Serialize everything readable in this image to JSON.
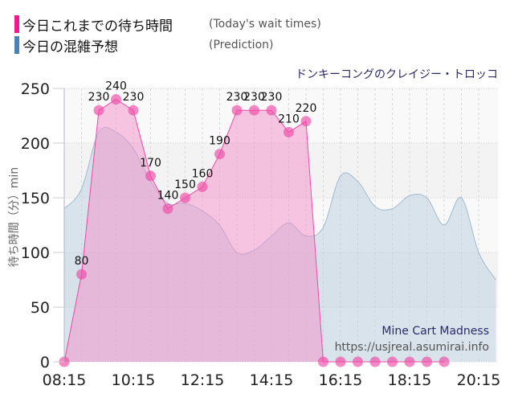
{
  "legend": {
    "items": [
      {
        "label_ja": "今日これまでの待ち時間",
        "label_en": "(Today's wait times)",
        "color": "#ee1a8f"
      },
      {
        "label_ja": "今日の混雑予想",
        "label_en": "(Prediction)",
        "color": "#4a82b4"
      }
    ]
  },
  "ride_title": "ドンキーコングのクレイジー・トロッコ",
  "watermark": {
    "name": "Mine Cart Madness",
    "url": "https://usjreal.asumirai.info"
  },
  "chart_data": {
    "type": "area",
    "title": "ドンキーコングのクレイジー・トロッコ",
    "subtitle": "Mine Cart Madness",
    "xlabel": "",
    "ylabel": "待ち時間（分）min",
    "ylim": [
      0,
      250
    ],
    "yticks": [
      0,
      50,
      100,
      150,
      200,
      250
    ],
    "xticks": [
      "08:15",
      "10:15",
      "12:15",
      "14:15",
      "16:15",
      "18:15",
      "20:15"
    ],
    "grid": true,
    "legend_position": "top-left",
    "series": [
      {
        "name": "今日これまでの待ち時間 (Today's wait times)",
        "color": "#ee1a8f",
        "x": [
          "08:15",
          "08:45",
          "09:15",
          "09:45",
          "10:15",
          "10:45",
          "11:15",
          "11:45",
          "12:15",
          "12:45",
          "13:15",
          "13:45",
          "14:15",
          "14:45",
          "15:15",
          "15:45",
          "16:15",
          "16:45",
          "17:15",
          "17:45",
          "18:15",
          "18:45",
          "19:15"
        ],
        "values": [
          0,
          80,
          230,
          240,
          230,
          170,
          140,
          150,
          160,
          190,
          230,
          230,
          230,
          210,
          220,
          0,
          0,
          0,
          0,
          0,
          0,
          0,
          0
        ],
        "labels_shown": [
          false,
          true,
          true,
          true,
          true,
          true,
          true,
          true,
          true,
          true,
          true,
          true,
          true,
          true,
          true,
          false,
          false,
          false,
          false,
          false,
          false,
          false,
          false
        ]
      },
      {
        "name": "今日の混雑予想 (Prediction)",
        "color": "#4a82b4",
        "x": [
          "08:15",
          "08:45",
          "09:15",
          "09:45",
          "10:15",
          "10:45",
          "11:15",
          "11:45",
          "12:15",
          "12:45",
          "13:15",
          "13:45",
          "14:15",
          "14:45",
          "15:15",
          "15:45",
          "16:15",
          "16:45",
          "17:15",
          "17:45",
          "18:15",
          "18:45",
          "19:15",
          "19:45",
          "20:15",
          "20:45"
        ],
        "values": [
          140,
          158,
          210,
          210,
          195,
          165,
          145,
          145,
          138,
          125,
          100,
          102,
          115,
          127,
          115,
          123,
          170,
          165,
          142,
          140,
          152,
          150,
          125,
          150,
          100,
          75
        ]
      }
    ]
  }
}
